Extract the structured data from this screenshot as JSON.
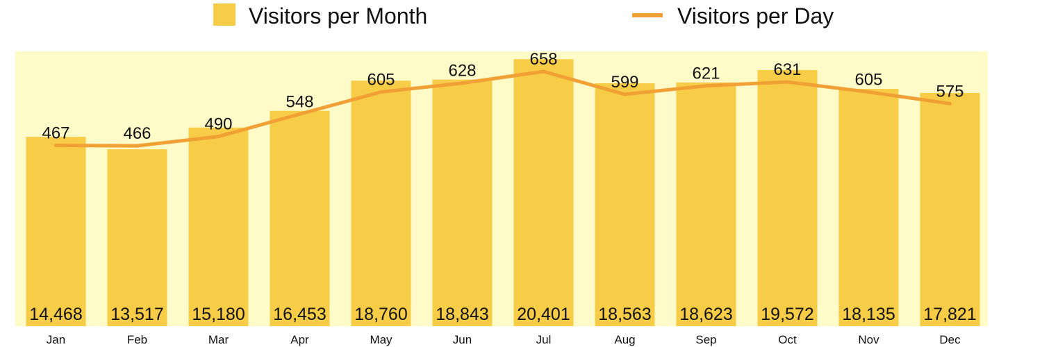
{
  "chart_data": {
    "type": "bar",
    "categories": [
      "Jan",
      "Feb",
      "Mar",
      "Apr",
      "May",
      "Jun",
      "Jul",
      "Aug",
      "Sep",
      "Oct",
      "Nov",
      "Dec"
    ],
    "series": [
      {
        "name": "Visitors per Month",
        "type": "bar",
        "values": [
          14468,
          13517,
          15180,
          16453,
          18760,
          18843,
          20401,
          18563,
          18623,
          19572,
          18135,
          17821
        ],
        "labels": [
          "14,468",
          "13,517",
          "15,180",
          "16,453",
          "18,760",
          "18,843",
          "20,401",
          "18,563",
          "18,623",
          "19,572",
          "18,135",
          "17,821"
        ],
        "color": "#f7cd47"
      },
      {
        "name": "Visitors per Day",
        "type": "line",
        "values": [
          467,
          466,
          490,
          548,
          605,
          628,
          658,
          599,
          621,
          631,
          605,
          575
        ],
        "labels": [
          "467",
          "466",
          "490",
          "548",
          "605",
          "628",
          "658",
          "599",
          "621",
          "631",
          "605",
          "575"
        ],
        "color": "#f0a035"
      }
    ],
    "title": "",
    "xlabel": "",
    "ylabel": "",
    "bar_ylim": [
      0,
      21000
    ],
    "line_ylim": [
      0,
      710
    ],
    "grid": false,
    "legend": "top",
    "plot_background": "#fffbc8"
  }
}
